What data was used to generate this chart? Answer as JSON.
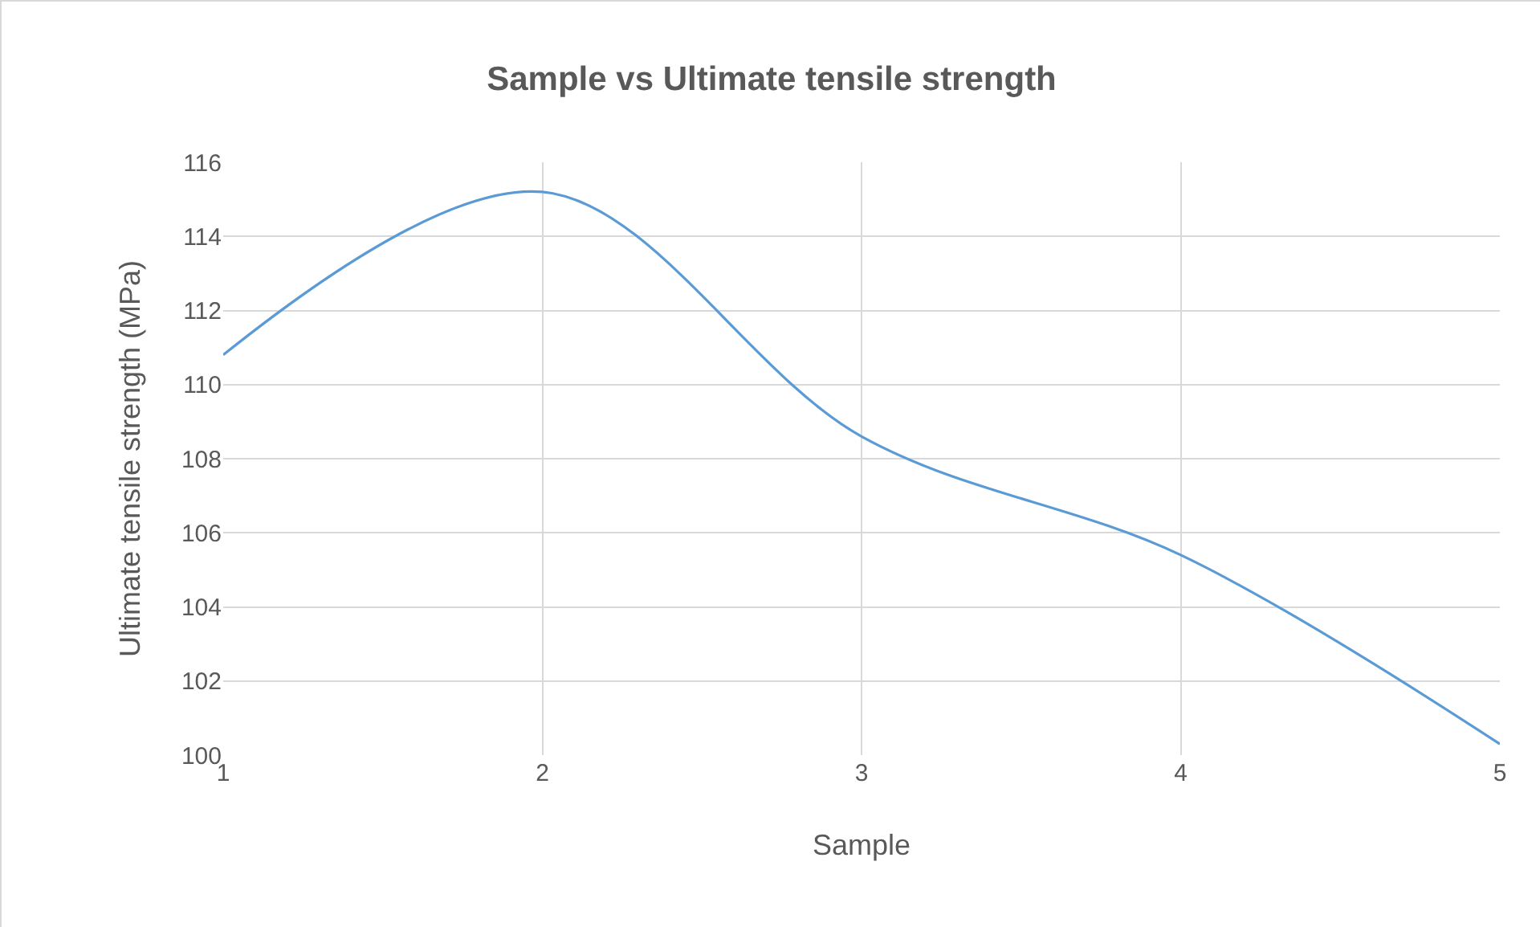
{
  "chart_data": {
    "type": "line",
    "title": "Sample vs Ultimate tensile strength",
    "xlabel": "Sample",
    "ylabel": "Ultimate tensile strength (MPa)",
    "x": [
      1,
      2,
      3,
      4,
      5
    ],
    "series": [
      {
        "color": "#5b9bd5",
        "values": [
          110.8,
          115.2,
          108.6,
          105.4,
          100.3
        ]
      }
    ],
    "xlim": [
      1,
      5
    ],
    "xticks": [
      1,
      2,
      3,
      4,
      5
    ],
    "ylim": [
      100,
      116
    ],
    "yticks": [
      100,
      102,
      104,
      106,
      108,
      110,
      112,
      114,
      116
    ],
    "grid": true,
    "marker": "none",
    "line_style": "solid"
  }
}
